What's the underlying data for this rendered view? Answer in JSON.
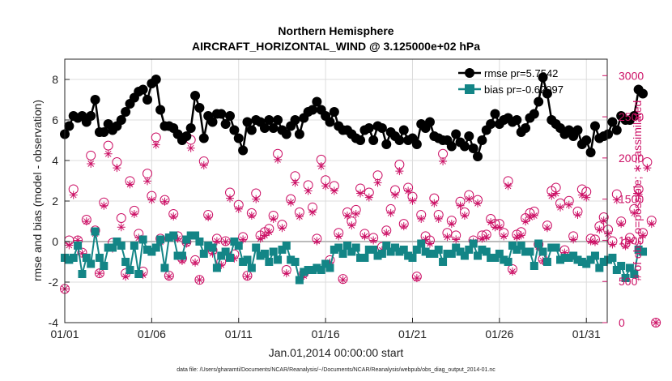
{
  "chart_data": {
    "type": "line",
    "title": "Northern Hemisphere",
    "subtitle": "AIRCRAFT_HORIZONTAL_WIND @ 3.125000e+02 hPa",
    "xlabel": "Jan.01,2014 00:00:00 start",
    "ylabel": "rmse and bias (model - observation)",
    "y2label": "# of obs: o=possible; ∗=assimilated",
    "footnote": "data file: /Users/gharamti/Documents/NCAR/Reanalysis/~/Documents/NCAR/Reanalysis/webpub/obs_diag_output_2014-01.nc",
    "xlim": [
      1.0,
      32.2
    ],
    "ylim": [
      -4,
      9
    ],
    "y2lim": [
      0,
      3200
    ],
    "xticks": [
      1,
      6,
      11,
      16,
      21,
      26,
      31
    ],
    "xtick_labels": [
      "01/01",
      "01/06",
      "01/11",
      "01/16",
      "01/21",
      "01/26",
      "01/31"
    ],
    "yticks": [
      -4,
      -2,
      0,
      2,
      4,
      6,
      8
    ],
    "ytick_labels": [
      "-4",
      "-2",
      "0",
      "2",
      "4",
      "6",
      "8"
    ],
    "y2ticks": [
      0,
      500,
      1000,
      1500,
      2000,
      2500,
      3000
    ],
    "y2tick_labels": [
      "0",
      "500",
      "1000",
      "1500",
      "2000",
      "2500",
      "3000"
    ],
    "grid": true,
    "legend_position": "top-right",
    "colors": {
      "rmse": "#000000",
      "bias": "#138586",
      "obs": "#cc1166",
      "zero_line": "#bbbbbb"
    },
    "series": [
      {
        "name": "rmse",
        "legend_label": "rmse pr=5.7542",
        "values": [
          5.3,
          5.7,
          6.2,
          6.1,
          6.2,
          5.9,
          6.2,
          7.0,
          5.4,
          5.4,
          5.8,
          5.5,
          5.7,
          6.0,
          6.4,
          6.8,
          7.1,
          7.4,
          7.5,
          7.0,
          7.8,
          8.0,
          6.5,
          5.7,
          5.7,
          5.6,
          5.3,
          5.0,
          5.2,
          5.6,
          7.2,
          6.6,
          5.1,
          6.2,
          5.9,
          6.3,
          6.3,
          5.8,
          6.2,
          5.5,
          5.1,
          4.5,
          5.9,
          5.5,
          6.0,
          5.9,
          5.6,
          6.0,
          5.6,
          6.0,
          5.5,
          5.3,
          5.7,
          6.0,
          5.3,
          6.1,
          6.4,
          6.5,
          6.9,
          6.5,
          6.2,
          5.9,
          6.4,
          5.7,
          5.5,
          5.5,
          5.3,
          5.1,
          5.0,
          5.5,
          5.6,
          5.0,
          5.7,
          5.6,
          4.8,
          5.4,
          5.2,
          5.0,
          5.5,
          5.0,
          5.1,
          4.8,
          5.8,
          5.6,
          5.9,
          5.2,
          5.1,
          5.0,
          5.0,
          4.7,
          5.3,
          4.9,
          4.7,
          5.2,
          4.6,
          4.2,
          5.0,
          5.5,
          5.8,
          6.3,
          5.8,
          6.0,
          6.1,
          5.9,
          6.0,
          5.4,
          5.6,
          6.1,
          6.3,
          6.9,
          8.1,
          7.3,
          6.0,
          5.8,
          5.6,
          5.3,
          5.5,
          5.2,
          5.5,
          4.8,
          5.0,
          4.4,
          5.7,
          5.1,
          5.2,
          5.3,
          5.9,
          5.5,
          6.2,
          6.0,
          6.0,
          6.2,
          7.5,
          7.3
        ]
      },
      {
        "name": "bias",
        "legend_label": "bias pr=-0.62097",
        "values": [
          -0.8,
          -0.9,
          -0.8,
          -0.2,
          -1.6,
          -0.8,
          -1.1,
          0.5,
          -0.8,
          -1.2,
          -0.3,
          -0.3,
          0.0,
          -0.2,
          -1.0,
          -1.4,
          -0.2,
          -1.6,
          0.1,
          -0.4,
          -0.5,
          -0.3,
          0.1,
          -1.3,
          0.2,
          0.3,
          -0.7,
          -0.7,
          0.1,
          0.3,
          0.3,
          0.0,
          -0.6,
          -0.2,
          -0.3,
          -1.3,
          -0.7,
          -0.5,
          -0.8,
          0.0,
          -0.2,
          -1.0,
          -0.9,
          -1.3,
          -0.3,
          -0.7,
          -0.6,
          -1.0,
          -0.5,
          -0.9,
          -0.4,
          -0.2,
          -0.9,
          -1.0,
          -1.9,
          -1.5,
          -1.4,
          -1.4,
          -1.3,
          -1.4,
          -1.1,
          -1.3,
          -0.4,
          -0.3,
          -0.6,
          -0.2,
          -0.5,
          -0.3,
          -0.8,
          -0.8,
          -0.4,
          -0.4,
          -0.7,
          -0.6,
          -0.2,
          -0.5,
          -0.3,
          -0.5,
          -0.4,
          -0.7,
          -0.8,
          -0.4,
          -0.1,
          -0.5,
          -0.6,
          -0.6,
          -0.4,
          -1.0,
          -0.6,
          -0.6,
          -0.3,
          -0.5,
          -0.7,
          -0.4,
          -0.1,
          -0.7,
          -0.4,
          -0.5,
          -0.8,
          -0.8,
          -0.6,
          -0.9,
          -1.0,
          -0.2,
          -0.4,
          -0.2,
          -0.5,
          -0.5,
          -1.2,
          -0.1,
          -0.5,
          -1.0,
          -0.3,
          -0.3,
          -0.9,
          -0.8,
          -0.8,
          -0.7,
          -0.9,
          -1.0,
          -1.1,
          -0.9,
          -0.7,
          -1.3,
          -1.0,
          -0.9,
          -0.8,
          -1.4,
          -1.2,
          -1.8,
          -1.3,
          -1.6,
          -0.4,
          -0.5
        ]
      },
      {
        "name": "possible",
        "marker": "o",
        "values": [
          410,
          1000,
          1620,
          1000,
          850,
          1250,
          2030,
          1120,
          600,
          1460,
          2150,
          970,
          1950,
          1270,
          600,
          1720,
          1360,
          1080,
          620,
          1810,
          1540,
          2250,
          1020,
          1490,
          570,
          1320,
          1050,
          780,
          980,
          2220,
          760,
          520,
          1960,
          1310,
          880,
          1020,
          740,
          990,
          1580,
          830,
          1430,
          1040,
          570,
          1330,
          1570,
          1060,
          1100,
          1140,
          1300,
          2050,
          1190,
          640,
          1500,
          1780,
          1340,
          600,
          1670,
          1400,
          1020,
          1980,
          1730,
          760,
          1660,
          1090,
          530,
          1340,
          1230,
          1370,
          1630,
          1080,
          1580,
          1030,
          1790,
          920,
          1120,
          1380,
          1610,
          1920,
          1200,
          1640,
          1530,
          560,
          1310,
          1050,
          1000,
          1510,
          1310,
          2050,
          1090,
          1240,
          1060,
          1470,
          1340,
          1550,
          1000,
          1490,
          1060,
          1070,
          1260,
          1200,
          1200,
          1090,
          1720,
          650,
          1070,
          1100,
          1270,
          1330,
          1350,
          950,
          770,
          1180,
          1600,
          1640,
          1450,
          880,
          1480,
          1050,
          1350,
          1620,
          1590,
          1020,
          1010,
          1170,
          1280,
          1130,
          990,
          1560,
          1230,
          960,
          1030,
          1380,
          1620,
          1090,
          1950,
          1240,
          0
        ]
      },
      {
        "name": "assimilated",
        "marker": "*",
        "values": [
          410,
          940,
          1550,
          1000,
          840,
          1230,
          1930,
          1080,
          600,
          1420,
          2050,
          900,
          1880,
          1160,
          560,
          1680,
          1320,
          1030,
          580,
          1720,
          1490,
          2160,
          980,
          1470,
          560,
          1290,
          1020,
          750,
          960,
          2120,
          730,
          520,
          1910,
          1280,
          840,
          990,
          700,
          980,
          1510,
          780,
          1380,
          1010,
          560,
          1300,
          1500,
          1020,
          1060,
          1100,
          1260,
          1980,
          1150,
          600,
          1460,
          1700,
          1290,
          570,
          1600,
          1340,
          990,
          1900,
          1660,
          730,
          1600,
          1050,
          520,
          1300,
          1180,
          1320,
          1570,
          1050,
          1520,
          1000,
          1700,
          880,
          1090,
          1330,
          1550,
          1840,
          1170,
          1600,
          1480,
          540,
          1260,
          1010,
          960,
          1450,
          1260,
          1960,
          1040,
          1200,
          1010,
          1420,
          1300,
          1500,
          980,
          1450,
          1020,
          1040,
          1220,
          1160,
          1160,
          1050,
          1660,
          620,
          1040,
          1060,
          1230,
          1280,
          1300,
          920,
          750,
          1150,
          1540,
          1570,
          1400,
          850,
          1430,
          1010,
          1310,
          1550,
          1520,
          990,
          980,
          1130,
          1240,
          1080,
          950,
          1490,
          1200,
          930,
          990,
          1330,
          1560,
          1060,
          1880,
          1200,
          0
        ]
      }
    ]
  }
}
